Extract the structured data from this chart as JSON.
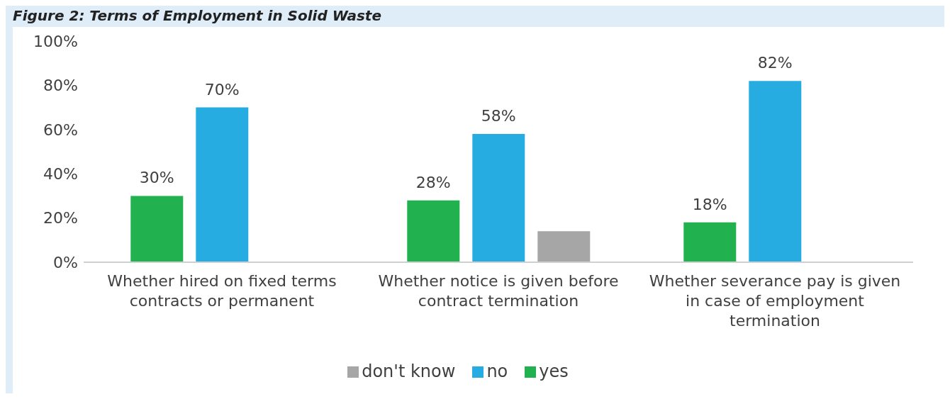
{
  "chart_data": {
    "type": "bar",
    "title": "Figure 2: Terms of Employment in Solid Waste",
    "categories": [
      "Whether hired on fixed terms contracts or permanent",
      "Whether notice is given before contract termination",
      "Whether severance pay is given in case of employment termination"
    ],
    "series": [
      {
        "name": "yes",
        "color": "#21b24f",
        "values": [
          30,
          28,
          18
        ],
        "value_labels": [
          "30%",
          "28%",
          "18%"
        ]
      },
      {
        "name": "no",
        "color": "#27ace2",
        "values": [
          70,
          58,
          82
        ],
        "value_labels": [
          "70%",
          "58%",
          "82%"
        ]
      },
      {
        "name": "don't know",
        "color": "#a6a6a6",
        "values": [
          null,
          14,
          null
        ],
        "value_labels": [
          null,
          null,
          null
        ]
      }
    ],
    "ylim": [
      0,
      100
    ],
    "yticks": [
      {
        "value": 0,
        "label": "0%"
      },
      {
        "value": 20,
        "label": "20%"
      },
      {
        "value": 40,
        "label": "40%"
      },
      {
        "value": 60,
        "label": "60%"
      },
      {
        "value": 80,
        "label": "80%"
      },
      {
        "value": 100,
        "label": "100%"
      }
    ],
    "grid": false,
    "legend": "bottom"
  }
}
